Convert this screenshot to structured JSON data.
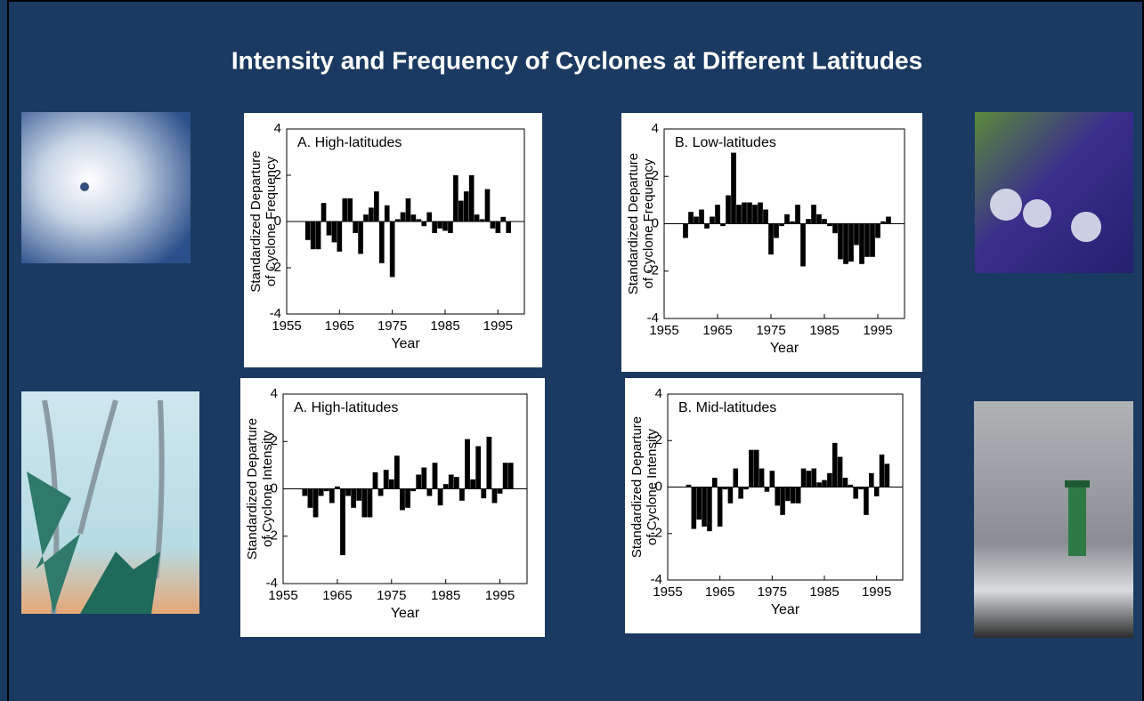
{
  "title": "Intensity and Frequency of Cyclones at Different Latitudes",
  "chart_data": [
    {
      "type": "bar",
      "title": "A. High-latitudes",
      "x_label": "Year",
      "y_label": [
        "Standardized Departure",
        "of Cyclone Frequency"
      ],
      "x": [
        1959,
        1960,
        1961,
        1962,
        1963,
        1964,
        1965,
        1966,
        1967,
        1968,
        1969,
        1970,
        1971,
        1972,
        1973,
        1974,
        1975,
        1976,
        1977,
        1978,
        1979,
        1980,
        1981,
        1982,
        1983,
        1984,
        1985,
        1986,
        1987,
        1988,
        1989,
        1990,
        1991,
        1992,
        1993,
        1994,
        1995,
        1996,
        1997
      ],
      "values": [
        -0.8,
        -1.2,
        -1.2,
        0.8,
        -0.6,
        -0.9,
        -1.3,
        1.0,
        1.0,
        -0.5,
        -1.4,
        0.3,
        0.6,
        1.3,
        -1.8,
        0.7,
        -2.4,
        0.1,
        0.4,
        1.0,
        0.3,
        0.1,
        -0.2,
        0.4,
        -0.5,
        -0.3,
        -0.4,
        -0.5,
        2.0,
        0.9,
        1.3,
        2.0,
        0.3,
        0.1,
        1.4,
        -0.3,
        -0.5,
        0.2,
        -0.5
      ],
      "color": "#000000",
      "xlim": [
        1955,
        2000
      ],
      "xticks": [
        1955,
        1965,
        1975,
        1985,
        1995
      ],
      "ylim": [
        -4,
        4
      ],
      "yticks": [
        -4,
        -2,
        0,
        2,
        4
      ]
    },
    {
      "type": "bar",
      "title": "B. Low-latitudes",
      "x_label": "Year",
      "y_label": [
        "Standardized Departure",
        "of Cyclone Frequency"
      ],
      "x": [
        1959,
        1960,
        1961,
        1962,
        1963,
        1964,
        1965,
        1966,
        1967,
        1968,
        1969,
        1970,
        1971,
        1972,
        1973,
        1974,
        1975,
        1976,
        1977,
        1978,
        1979,
        1980,
        1981,
        1982,
        1983,
        1984,
        1985,
        1986,
        1987,
        1988,
        1989,
        1990,
        1991,
        1992,
        1993,
        1994,
        1995,
        1996,
        1997
      ],
      "values": [
        -0.6,
        0.5,
        0.3,
        0.6,
        -0.2,
        0.3,
        0.8,
        -0.1,
        1.2,
        3.0,
        0.8,
        0.9,
        0.9,
        0.8,
        0.9,
        0.6,
        -1.3,
        -0.6,
        -0.1,
        0.4,
        0.1,
        0.8,
        -1.8,
        0.2,
        0.8,
        0.4,
        0.2,
        -0.1,
        -0.4,
        -1.5,
        -1.7,
        -1.6,
        -0.9,
        -1.7,
        -1.4,
        -1.4,
        -0.6,
        0.1,
        0.3
      ],
      "color": "#000000",
      "xlim": [
        1955,
        2000
      ],
      "xticks": [
        1955,
        1965,
        1975,
        1985,
        1995
      ],
      "ylim": [
        -4,
        4
      ],
      "yticks": [
        -4,
        -2,
        0,
        2,
        4
      ]
    },
    {
      "type": "bar",
      "title": "A. High-latitudes",
      "x_label": "Year",
      "y_label": [
        "Standardized Departure",
        "of Cyclone Intensity"
      ],
      "x": [
        1959,
        1960,
        1961,
        1962,
        1963,
        1964,
        1965,
        1966,
        1967,
        1968,
        1969,
        1970,
        1971,
        1972,
        1973,
        1974,
        1975,
        1976,
        1977,
        1978,
        1979,
        1980,
        1981,
        1982,
        1983,
        1984,
        1985,
        1986,
        1987,
        1988,
        1989,
        1990,
        1991,
        1992,
        1993,
        1994,
        1995,
        1996,
        1997
      ],
      "values": [
        -0.3,
        -0.8,
        -1.2,
        -0.3,
        -0.1,
        -0.6,
        0.1,
        -2.8,
        -0.3,
        -0.8,
        -0.5,
        -1.2,
        -1.2,
        0.7,
        -0.3,
        0.8,
        0.4,
        1.4,
        -0.9,
        -0.8,
        -0.1,
        0.6,
        0.9,
        -0.3,
        1.1,
        -0.7,
        0.2,
        0.6,
        0.5,
        -0.5,
        2.1,
        0.4,
        1.8,
        -0.4,
        2.2,
        -0.6,
        -0.2,
        1.1,
        1.1
      ],
      "color": "#000000",
      "xlim": [
        1955,
        2000
      ],
      "xticks": [
        1955,
        1965,
        1975,
        1985,
        1995
      ],
      "ylim": [
        -4,
        4
      ],
      "yticks": [
        -4,
        -2,
        0,
        2,
        4
      ]
    },
    {
      "type": "bar",
      "title": "B. Mid-latitudes",
      "x_label": "Year",
      "y_label": [
        "Standardized Departure",
        "of Cyclone Intensity"
      ],
      "x": [
        1959,
        1960,
        1961,
        1962,
        1963,
        1964,
        1965,
        1966,
        1967,
        1968,
        1969,
        1970,
        1971,
        1972,
        1973,
        1974,
        1975,
        1976,
        1977,
        1978,
        1979,
        1980,
        1981,
        1982,
        1983,
        1984,
        1985,
        1986,
        1987,
        1988,
        1989,
        1990,
        1991,
        1992,
        1993,
        1994,
        1995,
        1996,
        1997
      ],
      "values": [
        0.1,
        -1.8,
        -1.4,
        -1.7,
        -1.9,
        0.4,
        -1.7,
        -0.1,
        -0.7,
        0.8,
        -0.5,
        -0.1,
        1.6,
        1.6,
        0.8,
        -0.2,
        0.7,
        -0.8,
        -1.2,
        -0.6,
        -0.7,
        -0.7,
        0.8,
        0.7,
        0.8,
        0.2,
        0.3,
        0.6,
        1.9,
        1.3,
        0.4,
        0.1,
        -0.5,
        -0.1,
        -1.2,
        0.6,
        -0.4,
        1.4,
        1.0
      ],
      "color": "#000000",
      "xlim": [
        1955,
        2000
      ],
      "xticks": [
        1955,
        1965,
        1975,
        1985,
        1995
      ],
      "ylim": [
        -4,
        4
      ],
      "yticks": [
        -4,
        -2,
        0,
        2,
        4
      ]
    }
  ]
}
